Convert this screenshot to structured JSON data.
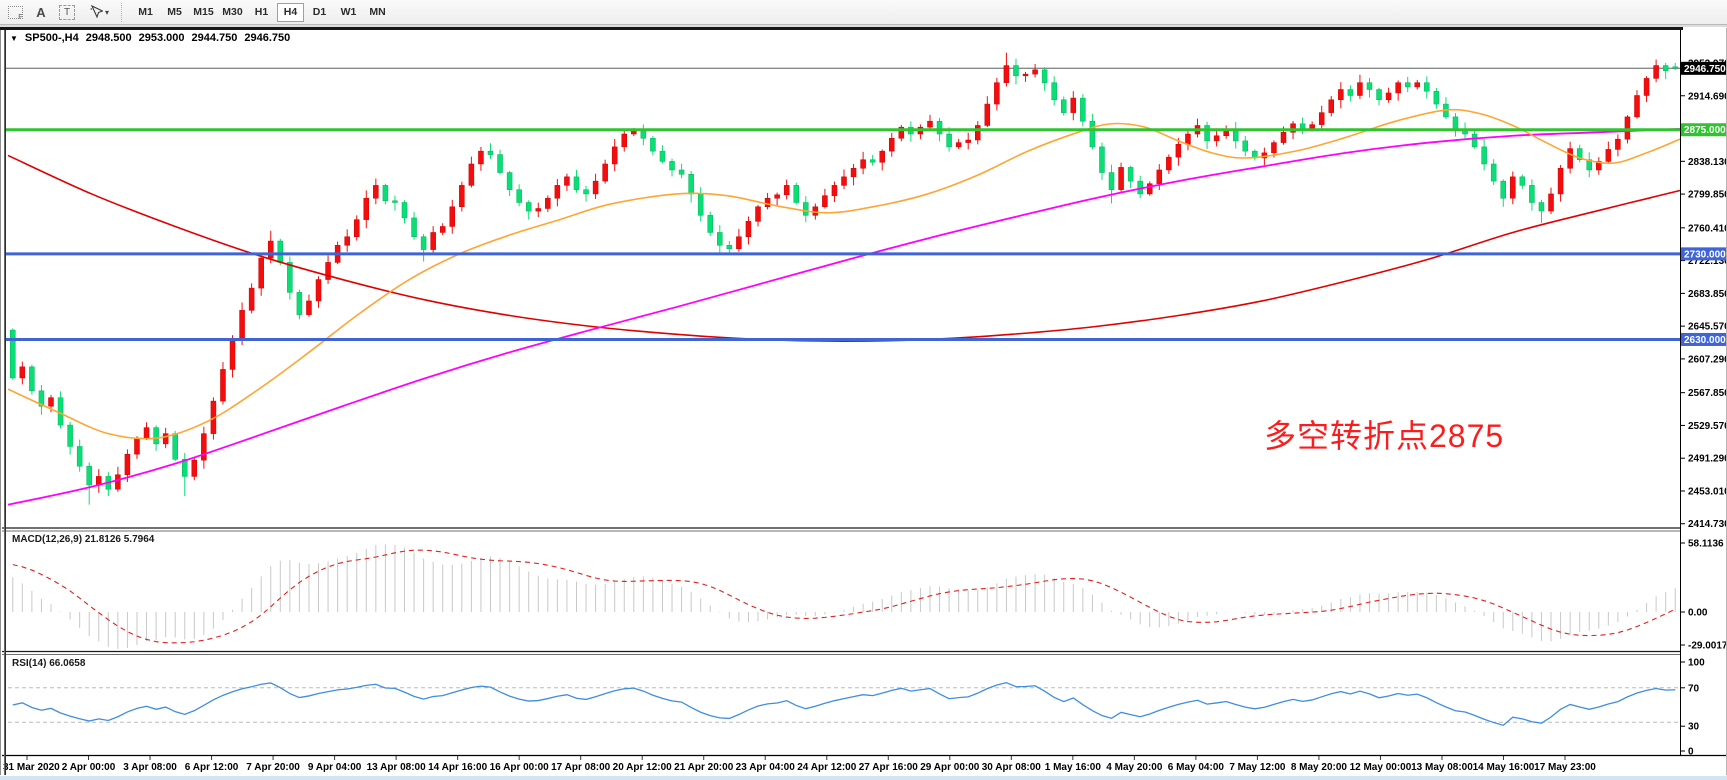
{
  "toolbar": {
    "icons": [
      {
        "name": "dotted-grid-f-icon",
        "glyph": "F"
      },
      {
        "name": "font-a-icon",
        "glyph": "A"
      },
      {
        "name": "text-label-icon",
        "glyph": "T"
      },
      {
        "name": "cursor-tool-icon",
        "glyph": "▾"
      }
    ],
    "timeframes": [
      "M1",
      "M5",
      "M15",
      "M30",
      "H1",
      "H4",
      "D1",
      "W1",
      "MN"
    ],
    "active_timeframe": "H4"
  },
  "chart": {
    "title": {
      "expander": "▼",
      "symbol": "SP500-,H4",
      "open": "2948.500",
      "high": "2953.000",
      "low": "2944.750",
      "close": "2946.750"
    },
    "annotation": {
      "text": "多空转折点2875",
      "color": "#fb1d1d"
    },
    "colors": {
      "candle_up": "#f50d0d",
      "candle_up_border": "#c80000",
      "candle_down": "#0ade76",
      "candle_down_border": "#00b45c",
      "bid_line": "#8a8a8a",
      "hline_green": "#2fc42f",
      "hline_blue": "#3e64d6",
      "ma_fast": "#ffa533",
      "ma_mid": "#ff00ff",
      "ma_slow": "#e00000",
      "macd_bar": "#c8c8c8",
      "macd_signal": "#e02020",
      "rsi_line": "#3e8ede",
      "rsi_level": "#bbbbbb"
    }
  },
  "chart_data": {
    "type": "candlestick",
    "symbol": "SP500-,H4",
    "price_axis_ticks": [
      2952.97,
      2914.69,
      2838.13,
      2799.85,
      2760.41,
      2722.13,
      2683.85,
      2645.57,
      2607.29,
      2567.85,
      2529.57,
      2491.29,
      2453.01,
      2414.73
    ],
    "price_axis_boxes": [
      {
        "label": "2946.750",
        "price": 2946.75,
        "bg": "#000000",
        "fg": "#ffffff"
      },
      {
        "label": "2875.000",
        "price": 2875.0,
        "bg": "#2fc42f",
        "fg": "#ffffff"
      },
      {
        "label": "2730.000",
        "price": 2730.0,
        "bg": "#3e64d6",
        "fg": "#ffffff"
      },
      {
        "label": "2630.000",
        "price": 2630.0,
        "bg": "#3e64d6",
        "fg": "#ffffff"
      }
    ],
    "horizontal_lines": [
      {
        "price": 2946.75,
        "color": "#8a8a8a",
        "width": 1.4,
        "role": "current-price"
      },
      {
        "price": 2875.0,
        "color": "#2fc42f",
        "width": 3,
        "role": "support-resistance"
      },
      {
        "price": 2730.0,
        "color": "#3e64d6",
        "width": 3,
        "role": "support"
      },
      {
        "price": 2630.0,
        "color": "#3e64d6",
        "width": 3,
        "role": "support"
      }
    ],
    "time_axis": [
      "31 Mar 2020",
      "2 Apr 00:00",
      "3 Apr 08:00",
      "6 Apr 12:00",
      "7 Apr 20:00",
      "9 Apr 04:00",
      "13 Apr 08:00",
      "14 Apr 16:00",
      "16 Apr 00:00",
      "17 Apr 08:00",
      "20 Apr 12:00",
      "21 Apr 20:00",
      "23 Apr 04:00",
      "24 Apr 12:00",
      "27 Apr 16:00",
      "29 Apr 00:00",
      "30 Apr 08:00",
      "1 May 16:00",
      "4 May 20:00",
      "6 May 04:00",
      "7 May 12:00",
      "8 May 20:00",
      "12 May 00:00",
      "13 May 08:00",
      "14 May 16:00",
      "17 May 23:00"
    ],
    "first_open": 2641,
    "prehistory": [
      2480,
      2495,
      2510,
      2500,
      2520,
      2535,
      2545,
      2540,
      2560,
      2575,
      2590,
      2580,
      2600,
      2615,
      2630,
      2645,
      2660,
      2640,
      2655,
      2670,
      2685,
      2665,
      2650,
      2662,
      2675,
      2641
    ],
    "closes": [
      2585,
      2598,
      2570,
      2552,
      2562,
      2530,
      2505,
      2482,
      2460,
      2470,
      2455,
      2472,
      2496,
      2515,
      2527,
      2508,
      2520,
      2490,
      2470,
      2489,
      2520,
      2558,
      2595,
      2630,
      2664,
      2690,
      2725,
      2745,
      2720,
      2685,
      2659,
      2675,
      2700,
      2720,
      2740,
      2750,
      2770,
      2795,
      2810,
      2792,
      2790,
      2772,
      2750,
      2735,
      2755,
      2762,
      2785,
      2810,
      2835,
      2850,
      2846,
      2825,
      2805,
      2790,
      2780,
      2783,
      2795,
      2810,
      2820,
      2805,
      2800,
      2815,
      2835,
      2855,
      2870,
      2875,
      2865,
      2850,
      2838,
      2828,
      2823,
      2800,
      2775,
      2755,
      2740,
      2736,
      2750,
      2768,
      2785,
      2795,
      2799,
      2810,
      2790,
      2775,
      2785,
      2798,
      2810,
      2820,
      2830,
      2840,
      2837,
      2850,
      2865,
      2878,
      2870,
      2878,
      2885,
      2870,
      2855,
      2860,
      2863,
      2880,
      2905,
      2930,
      2950,
      2938,
      2940,
      2945,
      2930,
      2910,
      2895,
      2912,
      2885,
      2855,
      2825,
      2805,
      2831,
      2815,
      2800,
      2812,
      2828,
      2843,
      2858,
      2870,
      2880,
      2862,
      2868,
      2875,
      2862,
      2850,
      2842,
      2848,
      2860,
      2872,
      2882,
      2875,
      2881,
      2895,
      2910,
      2922,
      2915,
      2930,
      2922,
      2910,
      2918,
      2930,
      2925,
      2930,
      2920,
      2905,
      2890,
      2875,
      2870,
      2855,
      2835,
      2815,
      2795,
      2820,
      2810,
      2790,
      2780,
      2800,
      2830,
      2853,
      2840,
      2828,
      2838,
      2852,
      2864,
      2890,
      2915,
      2935,
      2950,
      2944,
      2946.75
    ],
    "overrides": {
      "8": {
        "low": 2437
      },
      "10": {
        "low": 2447
      },
      "18": {
        "low": 2447
      },
      "27": {
        "high": 2757
      },
      "38": {
        "high": 2818
      },
      "43": {
        "low": 2721
      },
      "104": {
        "high": 2965
      },
      "105": {
        "high": 2958
      },
      "115": {
        "low": 2789
      },
      "160": {
        "low": 2766
      },
      "172": {
        "high": 2957
      },
      "174": {
        "open": 2948.5,
        "high": 2953,
        "low": 2944.75
      }
    },
    "moving_averages": [
      {
        "name": "ma-fast-orange",
        "color": "#ffa533",
        "width": 1.6,
        "points": [
          [
            0,
            2572
          ],
          [
            0.03,
            2545
          ],
          [
            0.06,
            2520
          ],
          [
            0.09,
            2515
          ],
          [
            0.12,
            2535
          ],
          [
            0.15,
            2572
          ],
          [
            0.18,
            2615
          ],
          [
            0.21,
            2660
          ],
          [
            0.24,
            2700
          ],
          [
            0.27,
            2730
          ],
          [
            0.3,
            2752
          ],
          [
            0.33,
            2770
          ],
          [
            0.36,
            2788
          ],
          [
            0.4,
            2800
          ],
          [
            0.43,
            2798
          ],
          [
            0.46,
            2786
          ],
          [
            0.49,
            2778
          ],
          [
            0.52,
            2786
          ],
          [
            0.55,
            2800
          ],
          [
            0.58,
            2822
          ],
          [
            0.61,
            2850
          ],
          [
            0.64,
            2872
          ],
          [
            0.66,
            2882
          ],
          [
            0.68,
            2878
          ],
          [
            0.7,
            2862
          ],
          [
            0.72,
            2848
          ],
          [
            0.74,
            2842
          ],
          [
            0.77,
            2850
          ],
          [
            0.8,
            2866
          ],
          [
            0.83,
            2885
          ],
          [
            0.86,
            2898
          ],
          [
            0.88,
            2894
          ],
          [
            0.9,
            2880
          ],
          [
            0.92,
            2860
          ],
          [
            0.94,
            2842
          ],
          [
            0.96,
            2836
          ],
          [
            0.98,
            2848
          ],
          [
            1,
            2864
          ]
        ]
      },
      {
        "name": "ma-mid-magenta",
        "color": "#ff00ff",
        "width": 1.8,
        "points": [
          [
            0,
            2437
          ],
          [
            0.05,
            2458
          ],
          [
            0.1,
            2485
          ],
          [
            0.15,
            2518
          ],
          [
            0.2,
            2552
          ],
          [
            0.25,
            2585
          ],
          [
            0.3,
            2615
          ],
          [
            0.35,
            2642
          ],
          [
            0.4,
            2668
          ],
          [
            0.45,
            2695
          ],
          [
            0.5,
            2722
          ],
          [
            0.55,
            2748
          ],
          [
            0.6,
            2772
          ],
          [
            0.65,
            2795
          ],
          [
            0.7,
            2815
          ],
          [
            0.75,
            2832
          ],
          [
            0.8,
            2848
          ],
          [
            0.85,
            2860
          ],
          [
            0.9,
            2868
          ],
          [
            0.95,
            2872
          ],
          [
            1,
            2876
          ]
        ]
      },
      {
        "name": "ma-slow-red",
        "color": "#e00000",
        "width": 1.6,
        "points": [
          [
            0,
            2845
          ],
          [
            0.05,
            2800
          ],
          [
            0.1,
            2762
          ],
          [
            0.15,
            2728
          ],
          [
            0.2,
            2700
          ],
          [
            0.25,
            2676
          ],
          [
            0.3,
            2658
          ],
          [
            0.35,
            2645
          ],
          [
            0.4,
            2636
          ],
          [
            0.45,
            2630
          ],
          [
            0.5,
            2628
          ],
          [
            0.55,
            2630
          ],
          [
            0.6,
            2636
          ],
          [
            0.65,
            2645
          ],
          [
            0.7,
            2658
          ],
          [
            0.75,
            2675
          ],
          [
            0.8,
            2698
          ],
          [
            0.85,
            2724
          ],
          [
            0.9,
            2755
          ],
          [
            0.95,
            2780
          ],
          [
            1,
            2804
          ]
        ]
      }
    ],
    "macd": {
      "label": "MACD(12,26,9)",
      "values_text": "21.8126 5.7964",
      "fast": 12,
      "slow": 26,
      "signal": 9,
      "axis_labels": [
        "58.1136",
        "0.00",
        "-29.0017"
      ]
    },
    "rsi": {
      "label": "RSI(14)",
      "value_text": "66.0658",
      "period": 14,
      "axis_labels": [
        "100",
        "70",
        "30",
        "0"
      ],
      "levels": [
        70,
        30
      ]
    }
  }
}
